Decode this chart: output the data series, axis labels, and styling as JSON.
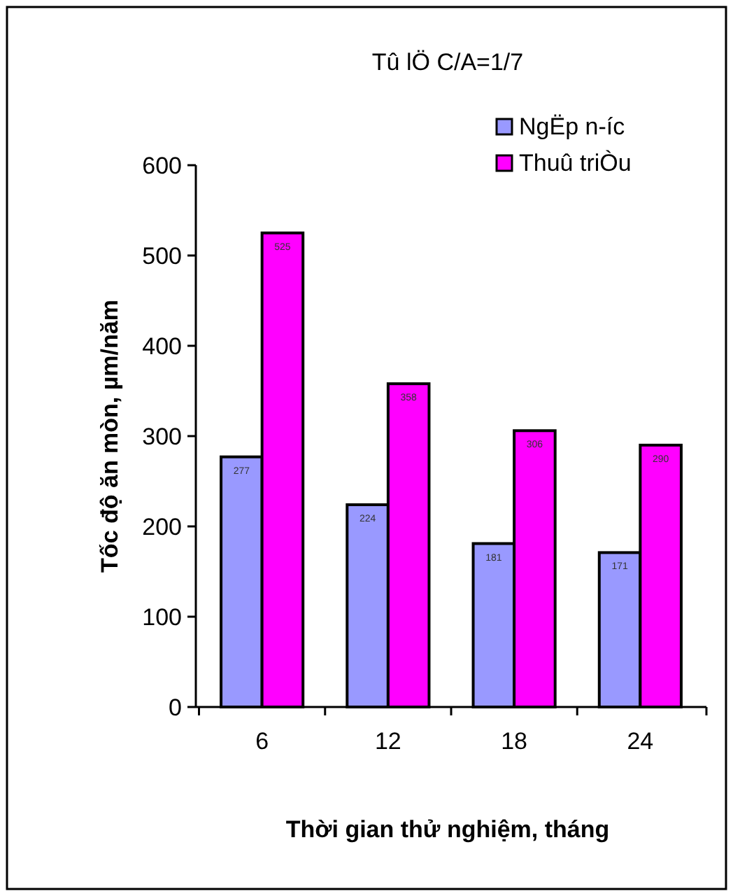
{
  "chart_data": {
    "type": "bar",
    "title": "Tû lÖ C/A=1/7",
    "xlabel": "Thời gian thử nghiệm, tháng",
    "ylabel": "Tốc độ ăn mòn, µm/năm",
    "categories": [
      "6",
      "12",
      "18",
      "24"
    ],
    "series": [
      {
        "name": "NgËp n-íc",
        "color": "#9999ff",
        "values": [
          277,
          224,
          181,
          171
        ]
      },
      {
        "name": "Thuû triÒu",
        "color": "#ff00ff",
        "values": [
          525,
          358,
          306,
          290
        ]
      }
    ],
    "ylim": [
      0,
      600
    ],
    "yticks": [
      0,
      100,
      200,
      300,
      400,
      500,
      600
    ],
    "legend": "top right",
    "data_labels": true
  }
}
